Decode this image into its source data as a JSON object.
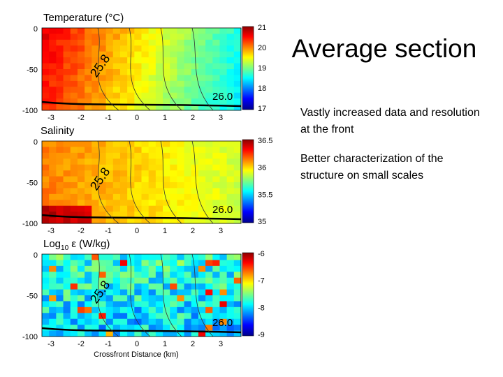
{
  "title": "Average section",
  "bullets": [
    "Vastly increased data and resolution at the front",
    "Better characterization of the structure on small scales"
  ],
  "panels": [
    {
      "title": "Temperature (°C)",
      "y_ticks": [
        "0",
        "-50",
        "-100"
      ],
      "x_ticks": [
        "-3",
        "-2",
        "-1",
        "0",
        "1",
        "2",
        "3"
      ],
      "colorbar_ticks": [
        "21",
        "20",
        "19",
        "18",
        "17"
      ],
      "contour_labels": [
        "25.8",
        "26.0"
      ]
    },
    {
      "title": "Salinity",
      "y_ticks": [
        "0",
        "-50",
        "-100"
      ],
      "x_ticks": [
        "-3",
        "-2",
        "-1",
        "0",
        "1",
        "2",
        "3"
      ],
      "colorbar_ticks": [
        "36.5",
        "36",
        "35.5",
        "35"
      ],
      "contour_labels": [
        "25.8",
        "26.0"
      ]
    },
    {
      "title_parts": [
        "Log",
        "10",
        " ε (W/kg)"
      ],
      "y_ticks": [
        "0",
        "-50",
        "-100"
      ],
      "x_ticks": [
        "-3",
        "-2",
        "-1",
        "0",
        "1",
        "2",
        "3"
      ],
      "colorbar_ticks": [
        "-6",
        "-7",
        "-8",
        "-9"
      ],
      "contour_labels": [
        "25.8",
        "26.0"
      ]
    }
  ],
  "x_axis_label": "Crossfront Distance (km)"
}
